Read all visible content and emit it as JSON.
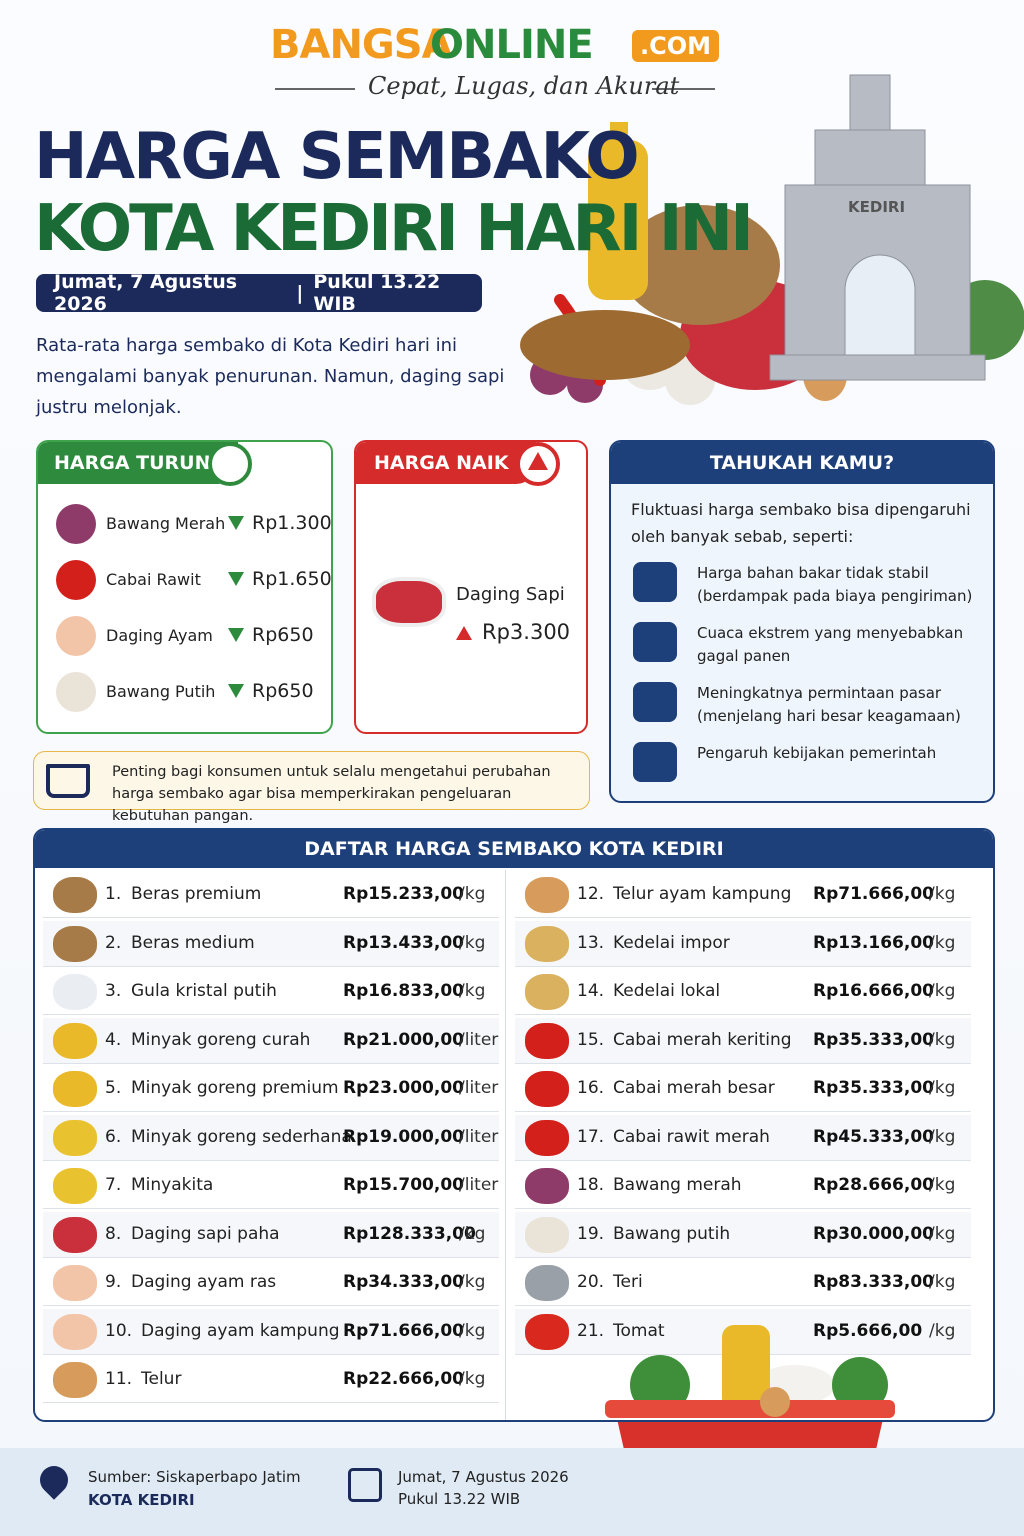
{
  "header": {
    "brand_part1": "BANGSA",
    "brand_part2": "ONLINE",
    "brand_suffix": ".COM",
    "tagline": "Cepat, Lugas, dan Akurat",
    "title_line1": "HARGA SEMBAKO",
    "title_line2": "KOTA KEDIRI HARI INI",
    "date": "Jumat, 7 Agustus 2026",
    "date_separator": "|",
    "time": "Pukul 13.22 WIB",
    "intro": "Rata-rata harga sembako di Kota Kediri hari ini mengalami banyak penurunan. Namun, daging sapi justru melonjak.",
    "monument_label": "KEDIRI"
  },
  "price_down": {
    "title": "HARGA TURUN",
    "items": [
      {
        "name": "Bawang Merah",
        "change": "Rp1.300"
      },
      {
        "name": "Cabai Rawit",
        "change": "Rp1.650"
      },
      {
        "name": "Daging Ayam",
        "change": "Rp650"
      },
      {
        "name": "Bawang Putih",
        "change": "Rp650"
      }
    ]
  },
  "price_up": {
    "title": "HARGA NAIK",
    "items": [
      {
        "name": "Daging Sapi",
        "change": "Rp3.300"
      }
    ]
  },
  "facts": {
    "title": "TAHUKAH KAMU?",
    "intro": "Fluktuasi harga sembako bisa dipengaruhi oleh banyak sebab, seperti:",
    "items": [
      "Harga bahan bakar tidak stabil (berdampak pada biaya pengiriman)",
      "Cuaca ekstrem yang menyebabkan gagal panen",
      "Meningkatnya permintaan pasar (menjelang hari besar keagamaan)",
      "Pengaruh kebijakan pemerintah"
    ]
  },
  "note": "Penting bagi konsumen untuk selalu mengetahui perubahan harga sembako agar bisa memperkirakan pengeluaran kebutuhan pangan.",
  "table": {
    "title": "DAFTAR HARGA SEMBAKO KOTA KEDIRI",
    "rows": [
      {
        "no": "1.",
        "name": "Beras premium",
        "price": "Rp15.233,00",
        "unit": "/kg"
      },
      {
        "no": "2.",
        "name": "Beras medium",
        "price": "Rp13.433,00",
        "unit": "/kg"
      },
      {
        "no": "3.",
        "name": "Gula kristal putih",
        "price": "Rp16.833,00",
        "unit": "/kg"
      },
      {
        "no": "4.",
        "name": "Minyak goreng curah",
        "price": "Rp21.000,00",
        "unit": "/liter"
      },
      {
        "no": "5.",
        "name": "Minyak goreng premium",
        "price": "Rp23.000,00",
        "unit": "/liter"
      },
      {
        "no": "6.",
        "name": "Minyak goreng sederhana",
        "price": "Rp19.000,00",
        "unit": "/liter"
      },
      {
        "no": "7.",
        "name": "Minyakita",
        "price": "Rp15.700,00",
        "unit": "/liter"
      },
      {
        "no": "8.",
        "name": "Daging sapi paha",
        "price": "Rp128.333,00",
        "unit": "/kg"
      },
      {
        "no": "9.",
        "name": "Daging ayam ras",
        "price": "Rp34.333,00",
        "unit": "/kg"
      },
      {
        "no": "10.",
        "name": "Daging ayam kampung",
        "price": "Rp71.666,00",
        "unit": "/kg"
      },
      {
        "no": "11.",
        "name": "Telur",
        "price": "Rp22.666,00",
        "unit": "/kg"
      },
      {
        "no": "12.",
        "name": "Telur ayam kampung",
        "price": "Rp71.666,00",
        "unit": "/kg"
      },
      {
        "no": "13.",
        "name": "Kedelai impor",
        "price": "Rp13.166,00",
        "unit": "/kg"
      },
      {
        "no": "14.",
        "name": "Kedelai lokal",
        "price": "Rp16.666,00",
        "unit": "/kg"
      },
      {
        "no": "15.",
        "name": "Cabai merah keriting",
        "price": "Rp35.333,00",
        "unit": "/kg"
      },
      {
        "no": "16.",
        "name": "Cabai merah besar",
        "price": "Rp35.333,00",
        "unit": "/kg"
      },
      {
        "no": "17.",
        "name": "Cabai rawit merah",
        "price": "Rp45.333,00",
        "unit": "/kg"
      },
      {
        "no": "18.",
        "name": "Bawang merah",
        "price": "Rp28.666,00",
        "unit": "/kg"
      },
      {
        "no": "19.",
        "name": "Bawang putih",
        "price": "Rp30.000,00",
        "unit": "/kg"
      },
      {
        "no": "20.",
        "name": "Teri",
        "price": "Rp83.333,00",
        "unit": "/kg"
      },
      {
        "no": "21.",
        "name": "Tomat",
        "price": "Rp5.666,00",
        "unit": "/kg"
      }
    ]
  },
  "footer": {
    "source": "Sumber: Siskaperbapo Jatim",
    "city": "KOTA KEDIRI",
    "date": "Jumat, 7 Agustus 2026",
    "time": "Pukul 13.22 WIB"
  }
}
